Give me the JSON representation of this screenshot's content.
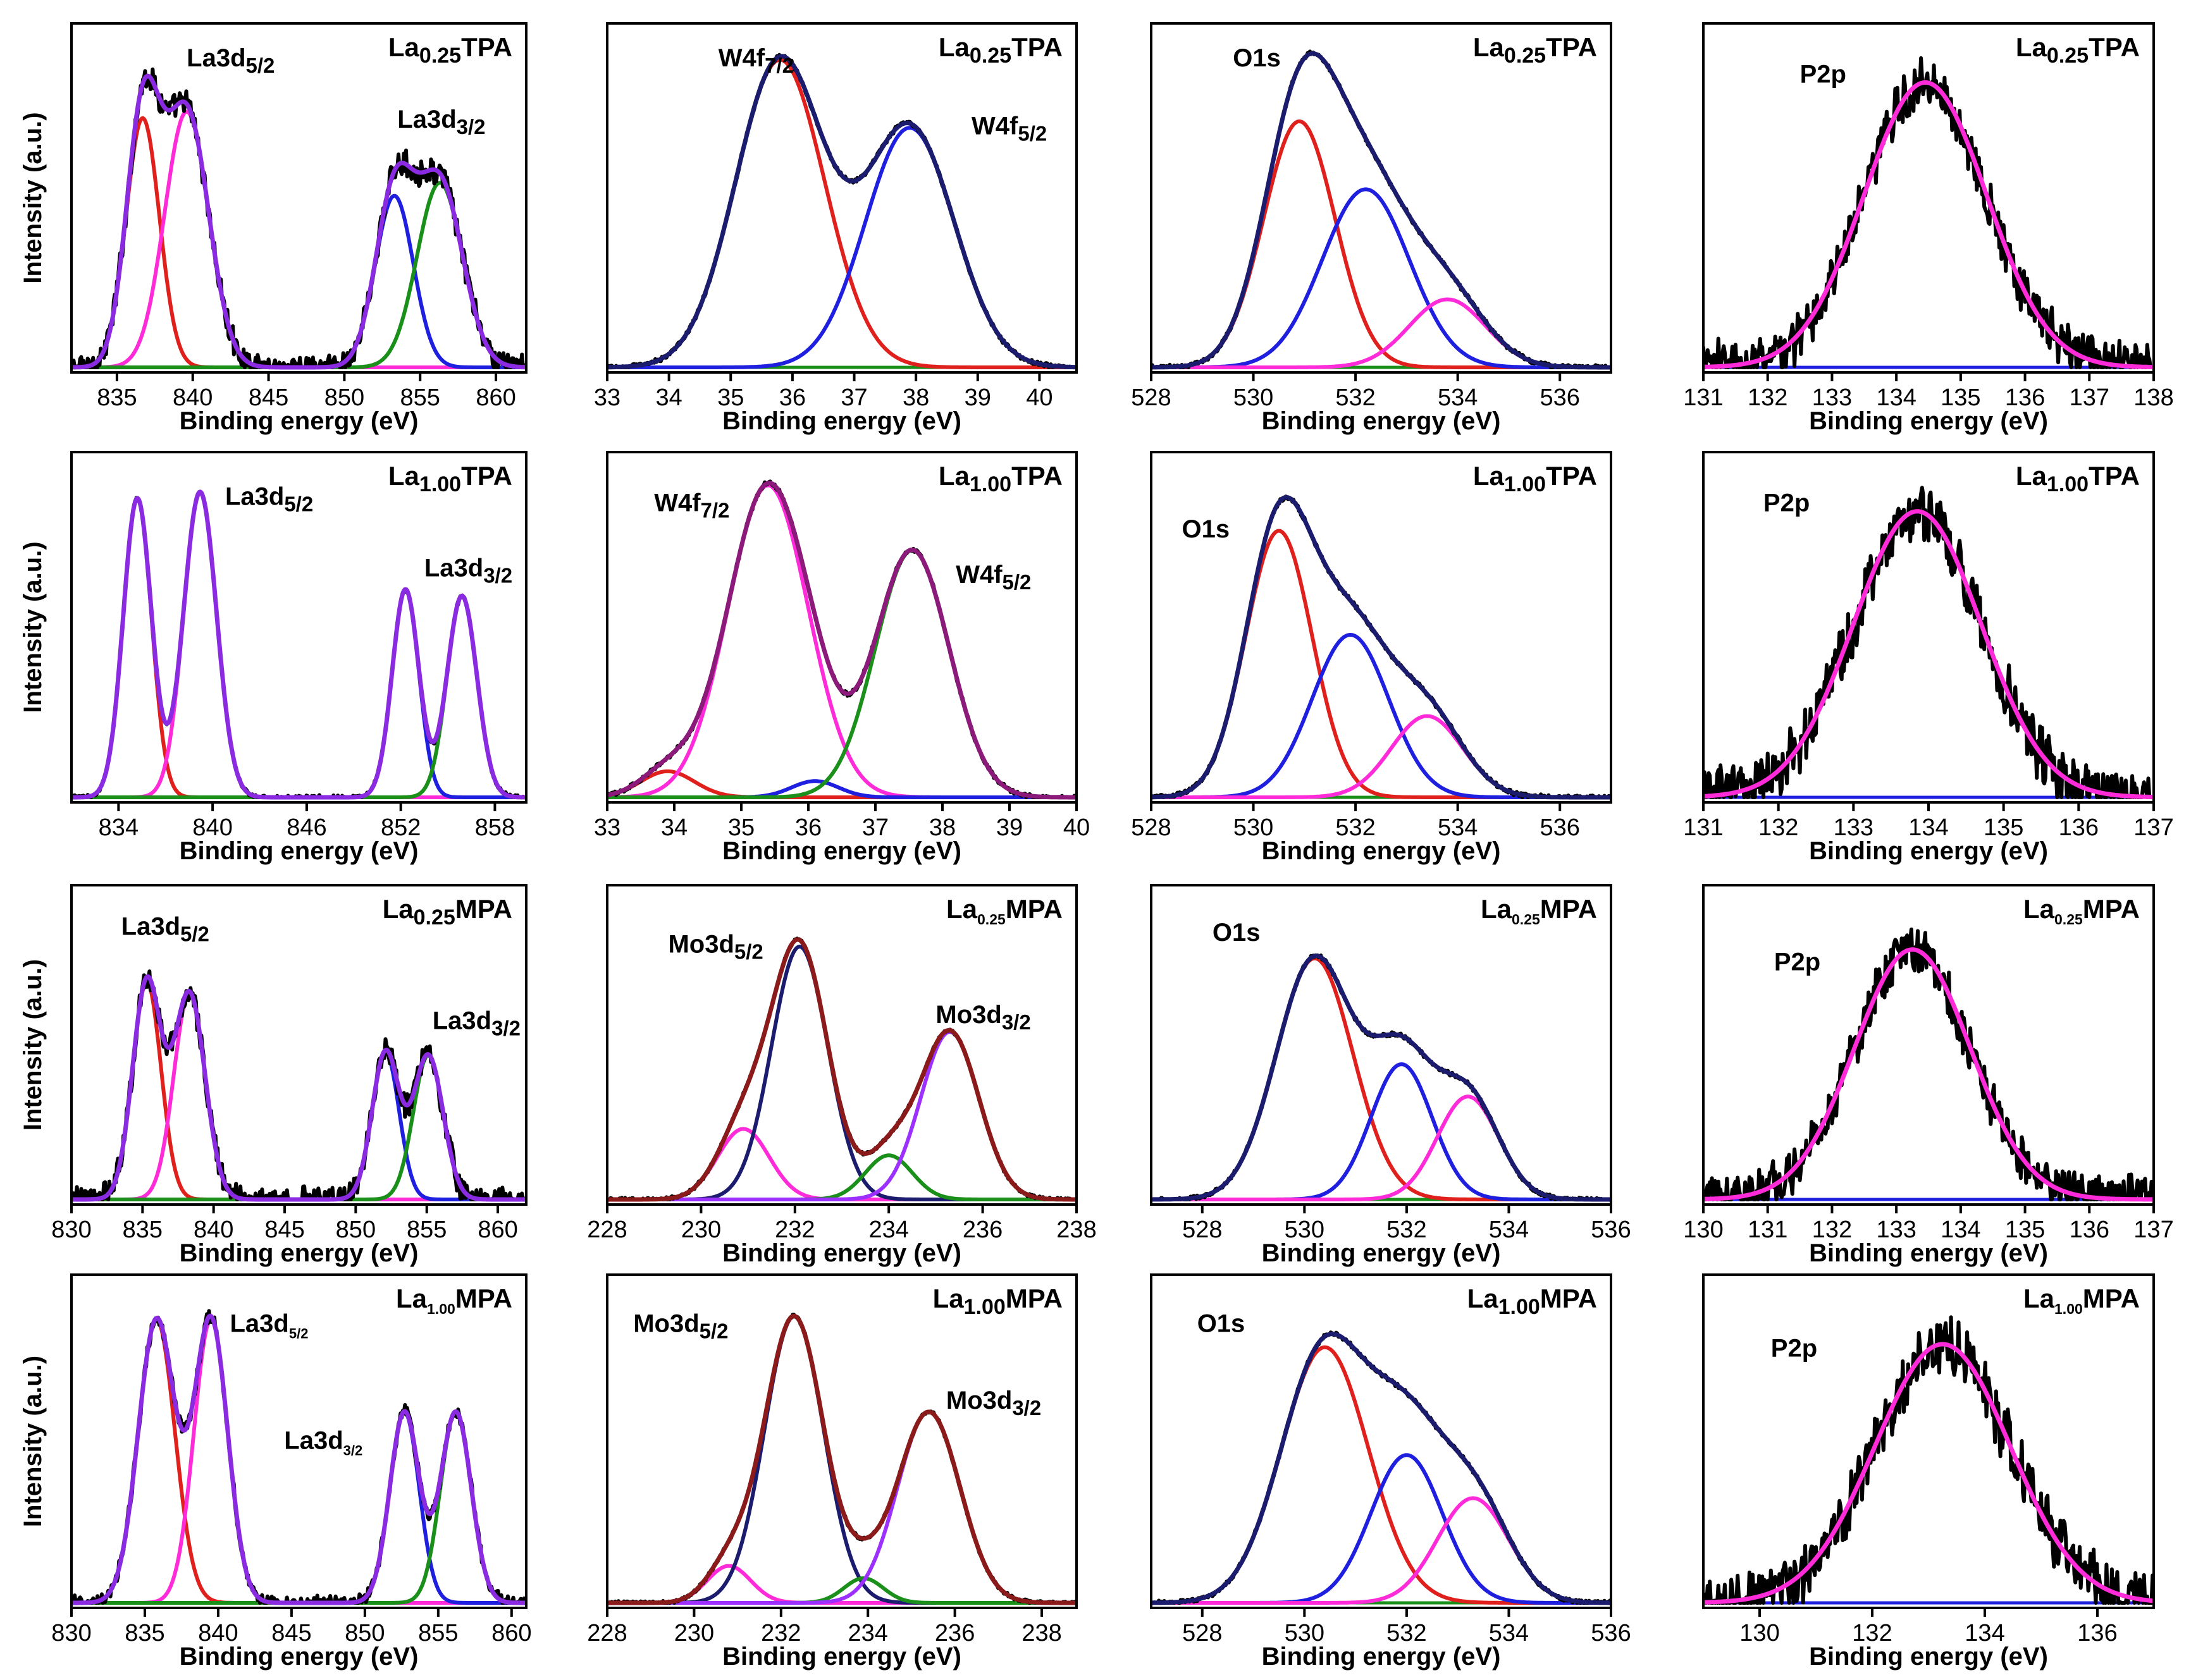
{
  "figure_title": "XPS spectra grid",
  "chart_data": [
    {
      "id": "p1",
      "type": "line",
      "title": {
        "base": "La",
        "sub": "0.25",
        "rest": "TPA",
        "style": "large"
      },
      "xlabel": "Binding energy (eV)",
      "ylabel": "Intensity (a.u.)",
      "xlim": [
        832,
        862
      ],
      "xticks": [
        835,
        840,
        845,
        850,
        855,
        860
      ],
      "annotations": [
        {
          "base": "La3d",
          "sub": "5/2",
          "x": 839.6,
          "y": 0.93,
          "style": "large"
        },
        {
          "base": "La3d",
          "sub": "3/2",
          "x": 853.5,
          "y": 0.74,
          "style": "large"
        }
      ],
      "baseline": {
        "color": "#1f1fbf",
        "y": 0.0
      },
      "peaks": [
        {
          "c": 836.7,
          "a": 0.77,
          "w": 1.1,
          "color": "#e0201d"
        },
        {
          "c": 839.6,
          "a": 0.79,
          "w": 1.45,
          "color": "#ff2bd9"
        },
        {
          "c": 853.3,
          "a": 0.53,
          "w": 1.25,
          "color": "#1f1fdf"
        },
        {
          "c": 856.3,
          "a": 0.57,
          "w": 1.5,
          "color": "#1a8f1a"
        }
      ],
      "envelope_color": "#8a2be2",
      "raw": {
        "color": "#000000",
        "noise": 0.035
      },
      "envelope_scale": 1.0
    },
    {
      "id": "p2",
      "type": "line",
      "title": {
        "base": "La",
        "sub": "0.25",
        "rest": "TPA",
        "style": "large"
      },
      "xlabel": "Binding energy (eV)",
      "ylabel": "",
      "xlim": [
        33,
        40.6
      ],
      "xticks": [
        33,
        34,
        35,
        36,
        37,
        38,
        39,
        40
      ],
      "annotations": [
        {
          "base": "W4f",
          "sub": "7/2",
          "x": 34.8,
          "y": 0.93,
          "style": "large"
        },
        {
          "base": "W4f",
          "sub": "5/2",
          "x": 38.9,
          "y": 0.72,
          "style": "large"
        }
      ],
      "baseline": {
        "color": "#1a8f1a",
        "y": 0.0
      },
      "peaks": [
        {
          "c": 35.8,
          "a": 0.95,
          "w": 0.72,
          "color": "#e0201d"
        },
        {
          "c": 37.9,
          "a": 0.74,
          "w": 0.72,
          "color": "#1f1fdf"
        }
      ],
      "envelope_color": "#1c1c6e",
      "raw": {
        "color": "#000000",
        "noise": 0.006
      },
      "envelope_scale": 1.0
    },
    {
      "id": "p3",
      "type": "line",
      "title": {
        "base": "La",
        "sub": "0.25",
        "rest": "TPA",
        "style": "large"
      },
      "xlabel": "Binding energy (eV)",
      "ylabel": "",
      "xlim": [
        528,
        537
      ],
      "xticks": [
        528,
        530,
        532,
        534,
        536
      ],
      "annotations": [
        {
          "base": "O1s",
          "sub": "",
          "x": 529.6,
          "y": 0.93,
          "style": "large"
        }
      ],
      "baseline": {
        "color": "#1a8f1a",
        "y": 0.0
      },
      "peaks": [
        {
          "c": 530.9,
          "a": 0.76,
          "w": 0.7,
          "color": "#e0201d"
        },
        {
          "c": 532.2,
          "a": 0.55,
          "w": 0.85,
          "color": "#1f1fdf"
        },
        {
          "c": 533.8,
          "a": 0.21,
          "w": 0.75,
          "color": "#ff2bd9"
        }
      ],
      "envelope_color": "#1c1c6e",
      "raw": {
        "color": "#000000",
        "noise": 0.006
      },
      "envelope_scale": 1.0
    },
    {
      "id": "p4",
      "type": "line",
      "title": {
        "base": "La",
        "sub": "0.25",
        "rest": "TPA",
        "style": "large"
      },
      "xlabel": "Binding energy (eV)",
      "ylabel": "",
      "xlim": [
        131,
        138
      ],
      "xticks": [
        131,
        132,
        133,
        134,
        135,
        136,
        137,
        138
      ],
      "annotations": [
        {
          "base": "P2p",
          "sub": "",
          "x": 132.5,
          "y": 0.88,
          "style": "large"
        }
      ],
      "baseline": {
        "color": "#1f1fdf",
        "y": 0.0
      },
      "peaks": [
        {
          "c": 134.45,
          "a": 0.88,
          "w": 0.95,
          "color": "#ff2bd9"
        }
      ],
      "envelope_color": "#ff2bd9",
      "raw": {
        "color": "#000000",
        "noise": 0.07
      },
      "envelope_scale": 1.0
    },
    {
      "id": "p5",
      "type": "line",
      "title": {
        "base": "La",
        "sub": "1.00",
        "rest": "TPA",
        "style": "large"
      },
      "xlabel": "Binding energy (eV)",
      "ylabel": "Intensity (a.u.)",
      "xlim": [
        831,
        860
      ],
      "xticks": [
        834,
        840,
        846,
        852,
        858
      ],
      "annotations": [
        {
          "base": "La3d",
          "sub": "5/2",
          "x": 840.8,
          "y": 0.9,
          "style": "large"
        },
        {
          "base": "La3d",
          "sub": "3/2",
          "x": 853.5,
          "y": 0.68,
          "style": "large"
        }
      ],
      "baseline": {
        "color": "#1f1fbf",
        "y": 0.0
      },
      "peaks": [
        {
          "c": 835.2,
          "a": 0.92,
          "w": 0.9,
          "color": "#e0201d"
        },
        {
          "c": 839.2,
          "a": 0.94,
          "w": 1.05,
          "color": "#ff2bd9"
        },
        {
          "c": 852.3,
          "a": 0.64,
          "w": 0.85,
          "color": "#1f1fdf"
        },
        {
          "c": 855.9,
          "a": 0.62,
          "w": 0.95,
          "color": "#1a8f1a"
        }
      ],
      "envelope_color": "#8a2be2",
      "raw": {
        "color": "#000000",
        "noise": 0.006
      },
      "envelope_scale": 1.0
    },
    {
      "id": "p6",
      "type": "line",
      "title": {
        "base": "La",
        "sub": "1.00",
        "rest": "TPA",
        "style": "large"
      },
      "xlabel": "Binding energy (eV)",
      "ylabel": "",
      "xlim": [
        33,
        40
      ],
      "xticks": [
        33,
        34,
        35,
        36,
        37,
        38,
        39,
        40
      ],
      "annotations": [
        {
          "base": "W4f",
          "sub": "7/2",
          "x": 33.7,
          "y": 0.88,
          "style": "large"
        },
        {
          "base": "W4f",
          "sub": "5/2",
          "x": 38.2,
          "y": 0.66,
          "style": "large"
        }
      ],
      "baseline": {
        "color": "#1a8f1a",
        "y": 0.0
      },
      "peaks": [
        {
          "c": 33.9,
          "a": 0.08,
          "w": 0.4,
          "color": "#e0201d"
        },
        {
          "c": 35.4,
          "a": 0.96,
          "w": 0.6,
          "color": "#ff2bd9"
        },
        {
          "c": 36.1,
          "a": 0.05,
          "w": 0.35,
          "color": "#1f1fdf"
        },
        {
          "c": 37.55,
          "a": 0.76,
          "w": 0.55,
          "color": "#1a8f1a"
        }
      ],
      "envelope_color": "#8b1a7a",
      "raw": {
        "color": "#000000",
        "noise": 0.006
      },
      "envelope_scale": 1.0
    },
    {
      "id": "p7",
      "type": "line",
      "title": {
        "base": "La",
        "sub": "1.00",
        "rest": "TPA",
        "style": "large"
      },
      "xlabel": "Binding energy (eV)",
      "ylabel": "",
      "xlim": [
        528,
        537
      ],
      "xticks": [
        528,
        530,
        532,
        534,
        536
      ],
      "annotations": [
        {
          "base": "O1s",
          "sub": "",
          "x": 528.6,
          "y": 0.8,
          "style": "large"
        }
      ],
      "baseline": {
        "color": "#1a8f1a",
        "y": 0.0
      },
      "peaks": [
        {
          "c": 530.5,
          "a": 0.82,
          "w": 0.65,
          "color": "#e0201d"
        },
        {
          "c": 531.9,
          "a": 0.5,
          "w": 0.75,
          "color": "#1f1fdf"
        },
        {
          "c": 533.4,
          "a": 0.25,
          "w": 0.7,
          "color": "#ff2bd9"
        }
      ],
      "envelope_color": "#1c1c6e",
      "raw": {
        "color": "#000000",
        "noise": 0.006
      },
      "envelope_scale": 1.0
    },
    {
      "id": "p8",
      "type": "line",
      "title": {
        "base": "La",
        "sub": "1.00",
        "rest": "TPA",
        "style": "large"
      },
      "xlabel": "Binding energy (eV)",
      "ylabel": "",
      "xlim": [
        131,
        137
      ],
      "xticks": [
        131,
        132,
        133,
        134,
        135,
        136,
        137
      ],
      "annotations": [
        {
          "base": "P2p",
          "sub": "",
          "x": 131.8,
          "y": 0.88,
          "style": "large"
        }
      ],
      "baseline": {
        "color": "#1f1fdf",
        "y": 0.0
      },
      "peaks": [
        {
          "c": 133.85,
          "a": 0.88,
          "w": 0.85,
          "color": "#ff2bd9"
        }
      ],
      "envelope_color": "#ff2bd9",
      "raw": {
        "color": "#000000",
        "noise": 0.075
      },
      "envelope_scale": 1.0
    },
    {
      "id": "p9",
      "type": "line",
      "title": {
        "base": "La",
        "sub": "0.25",
        "rest": "MPA",
        "style": "large"
      },
      "xlabel": "Binding energy (eV)",
      "ylabel": "Intensity (a.u.)",
      "xlim": [
        830,
        862
      ],
      "xticks": [
        830,
        835,
        840,
        845,
        850,
        855,
        860
      ],
      "annotations": [
        {
          "base": "La3d",
          "sub": "5/2",
          "x": 833.5,
          "y": 0.9,
          "style": "large"
        },
        {
          "base": "La3d",
          "sub": "3/2",
          "x": 855.4,
          "y": 0.58,
          "style": "large"
        }
      ],
      "baseline": {
        "color": "#8a2be2",
        "y": 0.0
      },
      "peaks": [
        {
          "c": 835.3,
          "a": 0.74,
          "w": 1.0,
          "color": "#e0201d"
        },
        {
          "c": 838.3,
          "a": 0.7,
          "w": 1.1,
          "color": "#ff2bd9"
        },
        {
          "c": 852.1,
          "a": 0.5,
          "w": 0.95,
          "color": "#1f1fdf"
        },
        {
          "c": 855.1,
          "a": 0.49,
          "w": 1.05,
          "color": "#1a8f1a"
        }
      ],
      "envelope_color": "#8a2be2",
      "raw": {
        "color": "#000000",
        "noise": 0.04
      },
      "envelope_scale": 1.0
    },
    {
      "id": "p10",
      "type": "line",
      "title": {
        "base": "La",
        "sub": "0.25",
        "rest": "MPA",
        "style": "small"
      },
      "xlabel": "Binding energy (eV)",
      "ylabel": "",
      "xlim": [
        228,
        238
      ],
      "xticks": [
        228,
        230,
        232,
        234,
        236,
        238
      ],
      "annotations": [
        {
          "base": "Mo3d",
          "sub": "5/2",
          "x": 229.3,
          "y": 0.84,
          "style": "large"
        },
        {
          "base": "Mo3d",
          "sub": "3/2",
          "x": 235.0,
          "y": 0.6,
          "style": "large"
        }
      ],
      "baseline": {
        "color": "#8b1a1a",
        "y": 0.0
      },
      "peaks": [
        {
          "c": 230.9,
          "a": 0.24,
          "w": 0.55,
          "color": "#ff2bd9"
        },
        {
          "c": 232.1,
          "a": 0.86,
          "w": 0.6,
          "color": "#1c1c6e"
        },
        {
          "c": 234.0,
          "a": 0.15,
          "w": 0.5,
          "color": "#1a8f1a"
        },
        {
          "c": 235.3,
          "a": 0.57,
          "w": 0.62,
          "color": "#9b30ff"
        }
      ],
      "envelope_color": "#8b1a1a",
      "raw": {
        "color": "#000000",
        "noise": 0.005
      },
      "envelope_scale": 1.0
    },
    {
      "id": "p11",
      "type": "line",
      "title": {
        "base": "La",
        "sub": "0.25",
        "rest": "MPA",
        "style": "small"
      },
      "xlabel": "Binding energy (eV)",
      "ylabel": "",
      "xlim": [
        527,
        536
      ],
      "xticks": [
        528,
        530,
        532,
        534,
        536
      ],
      "annotations": [
        {
          "base": "O1s",
          "sub": "",
          "x": 528.2,
          "y": 0.88,
          "style": "large"
        }
      ],
      "baseline": {
        "color": "#1a8f1a",
        "y": 0.0
      },
      "peaks": [
        {
          "c": 530.2,
          "a": 0.82,
          "w": 0.75,
          "color": "#e0201d"
        },
        {
          "c": 531.9,
          "a": 0.46,
          "w": 0.6,
          "color": "#1f1fdf"
        },
        {
          "c": 533.2,
          "a": 0.35,
          "w": 0.6,
          "color": "#ff2bd9"
        }
      ],
      "envelope_color": "#1c1c6e",
      "raw": {
        "color": "#000000",
        "noise": 0.006
      },
      "envelope_scale": 1.0
    },
    {
      "id": "p12",
      "type": "line",
      "title": {
        "base": "La",
        "sub": "0.25",
        "rest": "MPA",
        "style": "small"
      },
      "xlabel": "Binding energy (eV)",
      "ylabel": "",
      "xlim": [
        130,
        137
      ],
      "xticks": [
        130,
        131,
        132,
        133,
        134,
        135,
        136,
        137
      ],
      "annotations": [
        {
          "base": "P2p",
          "sub": "",
          "x": 131.1,
          "y": 0.78,
          "style": "large"
        }
      ],
      "baseline": {
        "color": "#1f1fdf",
        "y": 0.0
      },
      "peaks": [
        {
          "c": 133.25,
          "a": 0.85,
          "w": 0.9,
          "color": "#ff2bd9"
        }
      ],
      "envelope_color": "#ff2bd9",
      "raw": {
        "color": "#000000",
        "noise": 0.07
      },
      "envelope_scale": 1.0
    },
    {
      "id": "p13",
      "type": "line",
      "title": {
        "base": "La",
        "sub": "1.00",
        "rest": "MPA",
        "style": "small"
      },
      "xlabel": "Binding energy (eV)",
      "ylabel": "Intensity (a.u.)",
      "xlim": [
        830,
        861
      ],
      "xticks": [
        830,
        835,
        840,
        845,
        850,
        855,
        860
      ],
      "annotations": [
        {
          "base": "La3d",
          "sub": "5/2",
          "x": 840.8,
          "y": 0.88,
          "style": "small"
        },
        {
          "base": "La3d",
          "sub": "3/2",
          "x": 844.5,
          "y": 0.5,
          "style": "small"
        }
      ],
      "baseline": {
        "color": "#1f1fbf",
        "y": 0.0
      },
      "peaks": [
        {
          "c": 835.8,
          "a": 0.92,
          "w": 1.25,
          "color": "#e0201d"
        },
        {
          "c": 839.5,
          "a": 0.92,
          "w": 1.15,
          "color": "#ff2bd9"
        },
        {
          "c": 852.7,
          "a": 0.62,
          "w": 1.0,
          "color": "#1f1fdf"
        },
        {
          "c": 856.2,
          "a": 0.62,
          "w": 1.05,
          "color": "#1a8f1a"
        }
      ],
      "envelope_color": "#8a2be2",
      "raw": {
        "color": "#000000",
        "noise": 0.02
      },
      "envelope_scale": 1.0
    },
    {
      "id": "p14",
      "type": "line",
      "title": {
        "base": "La",
        "sub": "1.00",
        "rest": "MPA",
        "style": "large"
      },
      "xlabel": "Binding energy (eV)",
      "ylabel": "",
      "xlim": [
        228,
        238.8
      ],
      "xticks": [
        228,
        230,
        232,
        234,
        236,
        238
      ],
      "annotations": [
        {
          "base": "Mo3d",
          "sub": "5/2",
          "x": 228.6,
          "y": 0.88,
          "style": "large"
        },
        {
          "base": "Mo3d",
          "sub": "3/2",
          "x": 235.8,
          "y": 0.63,
          "style": "large"
        }
      ],
      "baseline": {
        "color": "#8b1a1a",
        "y": 0.0
      },
      "peaks": [
        {
          "c": 230.8,
          "a": 0.12,
          "w": 0.5,
          "color": "#ff2bd9"
        },
        {
          "c": 232.3,
          "a": 0.93,
          "w": 0.68,
          "color": "#1c1c6e"
        },
        {
          "c": 233.9,
          "a": 0.08,
          "w": 0.45,
          "color": "#1a8f1a"
        },
        {
          "c": 235.4,
          "a": 0.62,
          "w": 0.72,
          "color": "#9b30ff"
        }
      ],
      "envelope_color": "#8b1a1a",
      "raw": {
        "color": "#000000",
        "noise": 0.005
      },
      "envelope_scale": 1.0
    },
    {
      "id": "p15",
      "type": "line",
      "title": {
        "base": "La",
        "sub": "1.00",
        "rest": "MPA",
        "style": "large"
      },
      "xlabel": "Binding energy (eV)",
      "ylabel": "",
      "xlim": [
        527,
        536
      ],
      "xticks": [
        528,
        530,
        532,
        534,
        536
      ],
      "annotations": [
        {
          "base": "O1s",
          "sub": "",
          "x": 527.9,
          "y": 0.88,
          "style": "large"
        }
      ],
      "baseline": {
        "color": "#1a8f1a",
        "y": 0.0
      },
      "peaks": [
        {
          "c": 530.4,
          "a": 0.83,
          "w": 0.85,
          "color": "#e0201d"
        },
        {
          "c": 532.0,
          "a": 0.48,
          "w": 0.7,
          "color": "#1f1fdf"
        },
        {
          "c": 533.3,
          "a": 0.34,
          "w": 0.7,
          "color": "#ff2bd9"
        }
      ],
      "envelope_color": "#1c1c6e",
      "raw": {
        "color": "#000000",
        "noise": 0.006
      },
      "envelope_scale": 1.0
    },
    {
      "id": "p16",
      "type": "line",
      "title": {
        "base": "La",
        "sub": "1.00",
        "rest": "MPA",
        "style": "small"
      },
      "xlabel": "Binding energy (eV)",
      "ylabel": "",
      "xlim": [
        129,
        137
      ],
      "xticks": [
        130,
        132,
        134,
        136
      ],
      "annotations": [
        {
          "base": "P2p",
          "sub": "",
          "x": 130.2,
          "y": 0.8,
          "style": "large"
        }
      ],
      "baseline": {
        "color": "#1f1fdf",
        "y": 0.0
      },
      "peaks": [
        {
          "c": 133.25,
          "a": 0.84,
          "w": 1.2,
          "color": "#ff2bd9"
        }
      ],
      "envelope_color": "#ff2bd9",
      "raw": {
        "color": "#000000",
        "noise": 0.085
      },
      "envelope_scale": 1.0
    }
  ]
}
